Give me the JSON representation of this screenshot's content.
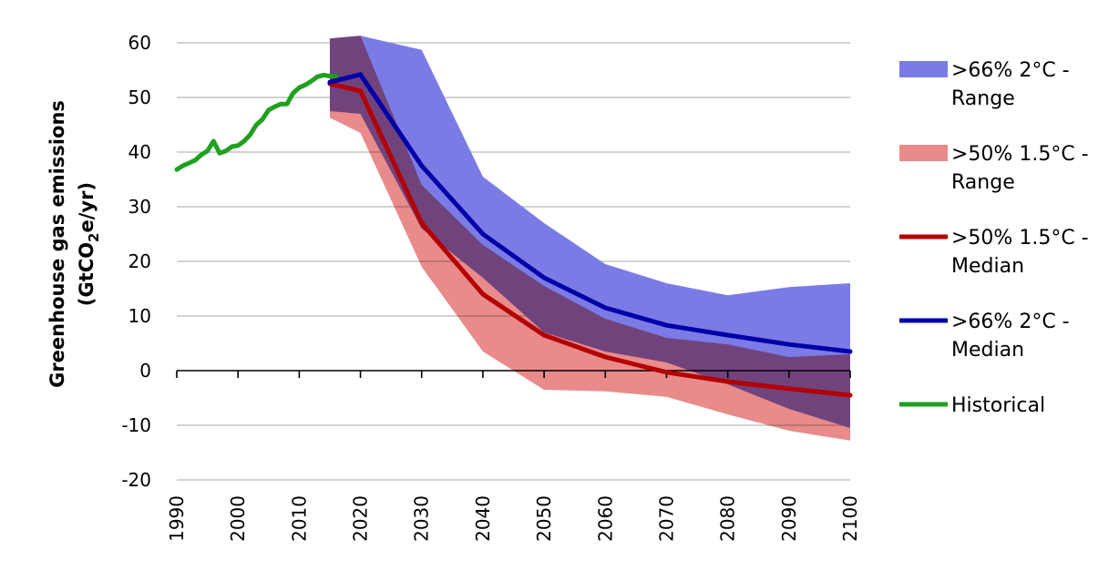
{
  "chart_data": {
    "type": "line",
    "ylabel": "Greenhouse gas emissions",
    "ylabel_unit_line": {
      "prefix": "(GtCO",
      "sub": "2",
      "suffix": "e/yr)"
    },
    "ylim": [
      -20,
      60
    ],
    "yticks": [
      -20,
      -10,
      0,
      10,
      20,
      30,
      40,
      50,
      60
    ],
    "xlim": [
      1990,
      2100
    ],
    "xticks": [
      1990,
      2000,
      2010,
      2020,
      2030,
      2040,
      2050,
      2060,
      2070,
      2080,
      2090,
      2100
    ],
    "grid": true,
    "legend_position": "right",
    "bands": [
      {
        "name": ">66% 2°C - Range",
        "label_lines": [
          ">66% 2°C -",
          "Range"
        ],
        "color": "#7b7be6",
        "x": [
          2015,
          2020,
          2030,
          2040,
          2050,
          2060,
          2070,
          2080,
          2090,
          2100
        ],
        "upper": [
          60.8,
          61.3,
          58.7,
          35.5,
          27,
          19.5,
          16,
          13.8,
          15.3,
          16
        ],
        "lower": [
          47.5,
          47,
          26,
          17,
          7,
          3.5,
          1.5,
          -2.5,
          -7,
          -10.5
        ]
      },
      {
        "name": ">50% 1.5°C - Range",
        "label_lines": [
          ">50% 1.5°C -",
          "Range"
        ],
        "color": "#e98b8b",
        "x": [
          2015,
          2020,
          2030,
          2040,
          2050,
          2060,
          2070,
          2080,
          2090,
          2100
        ],
        "upper": [
          60.8,
          61.3,
          34,
          23,
          15.5,
          9.5,
          6,
          4.8,
          2.5,
          3
        ],
        "lower": [
          46.3,
          43.5,
          19,
          3.5,
          -3.5,
          -3.8,
          -4.8,
          -8,
          -11,
          -12.8
        ]
      }
    ],
    "series": [
      {
        "name": ">50% 1.5°C - Median",
        "label_lines": [
          ">50% 1.5°C -",
          "Median"
        ],
        "color": "#b30000",
        "x": [
          2015,
          2020,
          2030,
          2040,
          2050,
          2060,
          2070,
          2080,
          2090,
          2100
        ],
        "values": [
          52.5,
          51.2,
          27,
          14,
          6.5,
          2.5,
          -0.3,
          -2,
          -3.3,
          -4.5
        ]
      },
      {
        "name": ">66% 2°C - Median",
        "label_lines": [
          ">66% 2°C -",
          "Median"
        ],
        "color": "#0000a8",
        "x": [
          2015,
          2020,
          2030,
          2040,
          2050,
          2060,
          2070,
          2080,
          2090,
          2100
        ],
        "values": [
          52.8,
          54.2,
          37.5,
          25,
          17,
          11.5,
          8.3,
          6.5,
          4.8,
          3.5
        ]
      },
      {
        "name": "Historical",
        "label_lines": [
          "Historical"
        ],
        "color": "#1fa01f",
        "x": [
          1990,
          1991,
          1992,
          1993,
          1994,
          1995,
          1996,
          1997,
          1998,
          1999,
          2000,
          2001,
          2002,
          2003,
          2004,
          2005,
          2006,
          2007,
          2008,
          2009,
          2010,
          2011,
          2012,
          2013,
          2014,
          2015,
          2016
        ],
        "values": [
          36.8,
          37.5,
          38,
          38.5,
          39.5,
          40.2,
          42,
          39.8,
          40.2,
          41,
          41.2,
          42,
          43.2,
          45,
          46,
          47.7,
          48.3,
          48.8,
          48.8,
          50.8,
          51.8,
          52.3,
          53,
          53.8,
          54.1,
          53.9,
          53.9
        ]
      }
    ],
    "legend_order": [
      ">66% 2°C - Range",
      ">50% 1.5°C - Range",
      ">50% 1.5°C - Median",
      ">66% 2°C - Median",
      "Historical"
    ]
  }
}
